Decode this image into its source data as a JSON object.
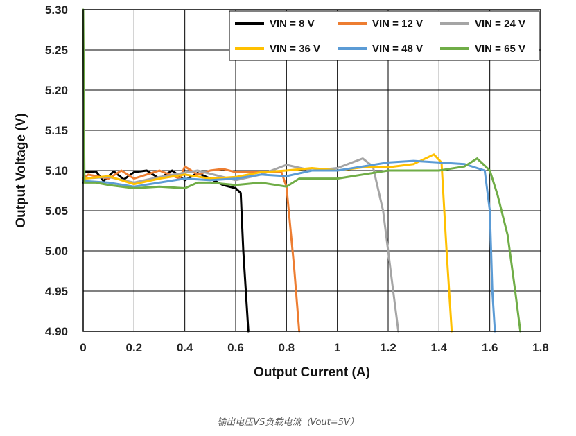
{
  "caption": "输出电压VS负载电流（Vout=5V）",
  "chart_data": {
    "type": "line",
    "title": "",
    "xlabel": "Output Current (A)",
    "ylabel": "Output Voltage (V)",
    "xlim": [
      0,
      1.8
    ],
    "ylim": [
      4.9,
      5.3
    ],
    "x_ticks": [
      "0",
      "0.2",
      "0.4",
      "0.6",
      "0.8",
      "1",
      "1.2",
      "1.4",
      "1.6",
      "1.8"
    ],
    "y_ticks": [
      "4.90",
      "4.95",
      "5.00",
      "5.05",
      "5.10",
      "5.15",
      "5.20",
      "5.25",
      "5.30"
    ],
    "grid": true,
    "legend_position": "top-right",
    "series": [
      {
        "name": "VIN = 8 V",
        "color": "#000000",
        "points": [
          [
            0,
            5.085
          ],
          [
            0.005,
            5.098
          ],
          [
            0.05,
            5.099
          ],
          [
            0.08,
            5.087
          ],
          [
            0.12,
            5.099
          ],
          [
            0.16,
            5.089
          ],
          [
            0.2,
            5.098
          ],
          [
            0.25,
            5.1
          ],
          [
            0.3,
            5.09
          ],
          [
            0.35,
            5.1
          ],
          [
            0.4,
            5.088
          ],
          [
            0.45,
            5.097
          ],
          [
            0.5,
            5.09
          ],
          [
            0.55,
            5.082
          ],
          [
            0.6,
            5.078
          ],
          [
            0.62,
            5.072
          ],
          [
            0.63,
            5.0
          ],
          [
            0.65,
            4.9
          ]
        ]
      },
      {
        "name": "VIN = 12 V",
        "color": "#ED7D31",
        "points": [
          [
            0,
            5.09
          ],
          [
            0.02,
            5.095
          ],
          [
            0.1,
            5.09
          ],
          [
            0.15,
            5.1
          ],
          [
            0.2,
            5.09
          ],
          [
            0.3,
            5.1
          ],
          [
            0.38,
            5.09
          ],
          [
            0.4,
            5.105
          ],
          [
            0.45,
            5.095
          ],
          [
            0.5,
            5.1
          ],
          [
            0.55,
            5.102
          ],
          [
            0.6,
            5.098
          ],
          [
            0.7,
            5.098
          ],
          [
            0.78,
            5.098
          ],
          [
            0.8,
            5.08
          ],
          [
            0.83,
            4.98
          ],
          [
            0.85,
            4.9
          ]
        ]
      },
      {
        "name": "VIN = 24 V",
        "color": "#A5A5A5",
        "points": [
          [
            0,
            5.09
          ],
          [
            0.1,
            5.092
          ],
          [
            0.2,
            5.085
          ],
          [
            0.3,
            5.092
          ],
          [
            0.45,
            5.1
          ],
          [
            0.6,
            5.088
          ],
          [
            0.7,
            5.095
          ],
          [
            0.8,
            5.107
          ],
          [
            0.9,
            5.1
          ],
          [
            1.0,
            5.103
          ],
          [
            1.1,
            5.115
          ],
          [
            1.14,
            5.105
          ],
          [
            1.18,
            5.05
          ],
          [
            1.22,
            4.95
          ],
          [
            1.24,
            4.9
          ]
        ]
      },
      {
        "name": "VIN = 36 V",
        "color": "#FFC000",
        "points": [
          [
            0,
            5.09
          ],
          [
            0.1,
            5.093
          ],
          [
            0.2,
            5.083
          ],
          [
            0.3,
            5.09
          ],
          [
            0.4,
            5.095
          ],
          [
            0.5,
            5.09
          ],
          [
            0.6,
            5.092
          ],
          [
            0.7,
            5.098
          ],
          [
            0.8,
            5.1
          ],
          [
            0.9,
            5.103
          ],
          [
            1.0,
            5.1
          ],
          [
            1.1,
            5.104
          ],
          [
            1.2,
            5.104
          ],
          [
            1.3,
            5.108
          ],
          [
            1.38,
            5.12
          ],
          [
            1.41,
            5.11
          ],
          [
            1.43,
            5.0
          ],
          [
            1.45,
            4.9
          ]
        ]
      },
      {
        "name": "VIN = 48 V",
        "color": "#5B9BD5",
        "points": [
          [
            0,
            5.087
          ],
          [
            0.1,
            5.085
          ],
          [
            0.2,
            5.08
          ],
          [
            0.3,
            5.085
          ],
          [
            0.4,
            5.09
          ],
          [
            0.5,
            5.088
          ],
          [
            0.6,
            5.09
          ],
          [
            0.7,
            5.095
          ],
          [
            0.8,
            5.093
          ],
          [
            0.9,
            5.1
          ],
          [
            1.0,
            5.1
          ],
          [
            1.1,
            5.105
          ],
          [
            1.2,
            5.11
          ],
          [
            1.3,
            5.112
          ],
          [
            1.4,
            5.11
          ],
          [
            1.5,
            5.108
          ],
          [
            1.58,
            5.1
          ],
          [
            1.6,
            5.05
          ],
          [
            1.61,
            4.95
          ],
          [
            1.62,
            4.9
          ]
        ]
      },
      {
        "name": "VIN = 65 V",
        "color": "#70AD47",
        "points": [
          [
            0,
            5.3
          ],
          [
            0.005,
            5.085
          ],
          [
            0.05,
            5.085
          ],
          [
            0.1,
            5.082
          ],
          [
            0.2,
            5.078
          ],
          [
            0.3,
            5.08
          ],
          [
            0.4,
            5.078
          ],
          [
            0.45,
            5.085
          ],
          [
            0.5,
            5.085
          ],
          [
            0.6,
            5.082
          ],
          [
            0.7,
            5.085
          ],
          [
            0.8,
            5.08
          ],
          [
            0.85,
            5.09
          ],
          [
            0.9,
            5.09
          ],
          [
            1.0,
            5.09
          ],
          [
            1.1,
            5.095
          ],
          [
            1.2,
            5.1
          ],
          [
            1.3,
            5.1
          ],
          [
            1.4,
            5.1
          ],
          [
            1.5,
            5.105
          ],
          [
            1.55,
            5.115
          ],
          [
            1.6,
            5.1
          ],
          [
            1.63,
            5.07
          ],
          [
            1.67,
            5.02
          ],
          [
            1.7,
            4.95
          ],
          [
            1.72,
            4.9
          ]
        ]
      }
    ]
  }
}
